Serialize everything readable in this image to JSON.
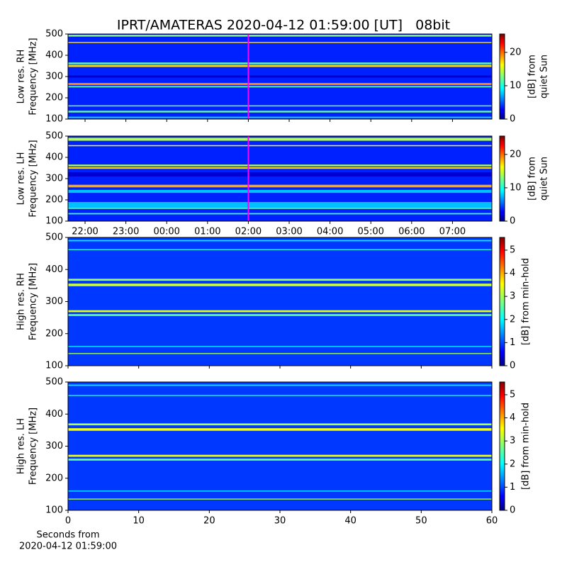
{
  "title": "IPRT/AMATERAS 2020-04-12 01:59:00 [UT]   08bit",
  "chart_data": [
    {
      "type": "heatmap",
      "ylabel": [
        "Low res. RH",
        "Frequency [MHz]"
      ],
      "xlim": [
        21.583,
        31.965
      ],
      "xticks": [
        {
          "value": 22,
          "label": "22:00"
        },
        {
          "value": 23,
          "label": "23:00"
        },
        {
          "value": 24,
          "label": "00:00"
        },
        {
          "value": 25,
          "label": "01:00"
        },
        {
          "value": 26,
          "label": "02:00"
        },
        {
          "value": 27,
          "label": "03:00"
        },
        {
          "value": 28,
          "label": "04:00"
        },
        {
          "value": 29,
          "label": "05:00"
        },
        {
          "value": 30,
          "label": "06:00"
        },
        {
          "value": 31,
          "label": "07:00"
        }
      ],
      "show_xticklabels": false,
      "ylim": [
        100,
        500
      ],
      "yticks": [
        100,
        200,
        300,
        400,
        500
      ],
      "colormap": "jet",
      "clim": [
        0,
        25.5
      ],
      "cticks": [
        0,
        10,
        20
      ],
      "clabel": [
        "[dB] from",
        "quiet Sun"
      ],
      "background": 4,
      "marker": 26,
      "marker_color": "#ff00ff",
      "bands": [
        {
          "freq": 492,
          "width": 8,
          "level": 13
        },
        {
          "freq": 460,
          "width": 5,
          "level": 17
        },
        {
          "freq": 362,
          "width": 8,
          "level": 12
        },
        {
          "freq": 350,
          "width": 10,
          "level": 17
        },
        {
          "freq": 300,
          "width": 10,
          "level": 2
        },
        {
          "freq": 265,
          "width": 10,
          "level": 19
        },
        {
          "freq": 252,
          "width": 6,
          "level": 12
        },
        {
          "freq": 162,
          "width": 5,
          "level": 13
        },
        {
          "freq": 135,
          "width": 8,
          "level": 12
        },
        {
          "freq": 108,
          "width": 6,
          "level": 9
        }
      ]
    },
    {
      "type": "heatmap",
      "ylabel": [
        "Low res. LH",
        "Frequency [MHz]"
      ],
      "xlim": [
        21.583,
        31.965
      ],
      "xticks": [
        {
          "value": 22,
          "label": "22:00"
        },
        {
          "value": 23,
          "label": "23:00"
        },
        {
          "value": 24,
          "label": "00:00"
        },
        {
          "value": 25,
          "label": "01:00"
        },
        {
          "value": 26,
          "label": "02:00"
        },
        {
          "value": 27,
          "label": "03:00"
        },
        {
          "value": 28,
          "label": "04:00"
        },
        {
          "value": 29,
          "label": "05:00"
        },
        {
          "value": 30,
          "label": "06:00"
        },
        {
          "value": 31,
          "label": "07:00"
        }
      ],
      "show_xticklabels": true,
      "ylim": [
        100,
        500
      ],
      "yticks": [
        100,
        200,
        300,
        400,
        500
      ],
      "colormap": "jet",
      "clim": [
        0,
        25.5
      ],
      "cticks": [
        0,
        10,
        20
      ],
      "clabel": [
        "[dB] from",
        "quiet Sun"
      ],
      "background": 4,
      "marker": 26,
      "marker_color": "#ff00ff",
      "bands": [
        {
          "freq": 485,
          "width": 14,
          "level": 14
        },
        {
          "freq": 455,
          "width": 5,
          "level": 16
        },
        {
          "freq": 362,
          "width": 8,
          "level": 14
        },
        {
          "freq": 350,
          "width": 8,
          "level": 17
        },
        {
          "freq": 320,
          "width": 20,
          "level": 2
        },
        {
          "freq": 265,
          "width": 12,
          "level": 18
        },
        {
          "freq": 240,
          "width": 14,
          "level": 8
        },
        {
          "freq": 175,
          "width": 30,
          "level": 8
        },
        {
          "freq": 160,
          "width": 5,
          "level": 12
        },
        {
          "freq": 135,
          "width": 6,
          "level": 11
        }
      ]
    },
    {
      "type": "heatmap",
      "ylabel": [
        "High res. RH",
        "Frequency [MHz]"
      ],
      "xlim": [
        0,
        60
      ],
      "xticks": [
        0,
        10,
        20,
        30,
        40,
        50,
        60
      ],
      "show_xticklabels": false,
      "ylim": [
        100,
        500
      ],
      "yticks": [
        100,
        200,
        300,
        400,
        500
      ],
      "colormap": "jet",
      "clim": [
        0,
        5.55
      ],
      "cticks": [
        0,
        1,
        2,
        3,
        4,
        5
      ],
      "clabel": [
        "[dB] from min-hold"
      ],
      "background": 1,
      "bands": [
        {
          "freq": 490,
          "width": 4,
          "level": 2
        },
        {
          "freq": 462,
          "width": 3,
          "level": 2.2
        },
        {
          "freq": 368,
          "width": 6,
          "level": 3
        },
        {
          "freq": 352,
          "width": 8,
          "level": 3.2
        },
        {
          "freq": 270,
          "width": 6,
          "level": 3.3
        },
        {
          "freq": 258,
          "width": 6,
          "level": 2.6
        },
        {
          "freq": 160,
          "width": 3,
          "level": 2
        },
        {
          "freq": 138,
          "width": 3,
          "level": 3
        }
      ]
    },
    {
      "type": "heatmap",
      "ylabel": [
        "High res. LH",
        "Frequency [MHz]"
      ],
      "xlim": [
        0,
        60
      ],
      "xticks": [
        0,
        10,
        20,
        30,
        40,
        50,
        60
      ],
      "show_xticklabels": true,
      "xlabel": [
        "Seconds from",
        "2020-04-12 01:59:00"
      ],
      "ylim": [
        100,
        500
      ],
      "yticks": [
        100,
        200,
        300,
        400,
        500
      ],
      "colormap": "jet",
      "clim": [
        0,
        5.55
      ],
      "cticks": [
        0,
        1,
        2,
        3,
        4,
        5
      ],
      "clabel": [
        "[dB] from min-hold"
      ],
      "background": 1,
      "bands": [
        {
          "freq": 490,
          "width": 4,
          "level": 2
        },
        {
          "freq": 458,
          "width": 3,
          "level": 2.2
        },
        {
          "freq": 368,
          "width": 6,
          "level": 3
        },
        {
          "freq": 352,
          "width": 8,
          "level": 3.4
        },
        {
          "freq": 270,
          "width": 6,
          "level": 3.4
        },
        {
          "freq": 258,
          "width": 6,
          "level": 2.6
        },
        {
          "freq": 160,
          "width": 3,
          "level": 2
        },
        {
          "freq": 135,
          "width": 3,
          "level": 3
        }
      ]
    }
  ]
}
